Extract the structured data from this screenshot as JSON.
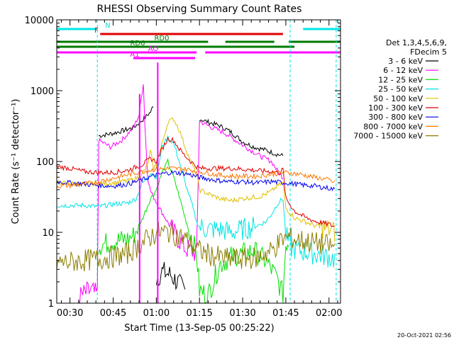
{
  "chart_data": {
    "type": "line",
    "title": "RHESSI Observing Summary Count Rates",
    "xlabel": "Start Time (13-Sep-05 00:25:22)",
    "ylabel": "Count Rate (s⁻¹ detector⁻¹)",
    "yscale": "log",
    "ylim": [
      1,
      10000
    ],
    "xlim_minutes": [
      25.4,
      124
    ],
    "x_ticks": [
      {
        "label": "00:30",
        "minute": 30
      },
      {
        "label": "00:45",
        "minute": 45
      },
      {
        "label": "01:00",
        "minute": 60
      },
      {
        "label": "01:15",
        "minute": 75
      },
      {
        "label": "01:30",
        "minute": 90
      },
      {
        "label": "01:45",
        "minute": 105
      },
      {
        "label": "02:00",
        "minute": 120
      }
    ],
    "y_ticks": [
      {
        "label": "1",
        "value": 1
      },
      {
        "label": "10",
        "value": 10
      },
      {
        "label": "100",
        "value": 100
      },
      {
        "label": "1000",
        "value": 1000
      },
      {
        "label": "10000",
        "value": 10000
      }
    ],
    "legend_title_1": "Det 1,3,4,5,6,9,",
    "legend_title_2": "FDecim 5",
    "legend_position": "right",
    "footer_date": "20-Oct-2021 02:56",
    "flag_bars": [
      {
        "label": "N",
        "color": "#00e5e5",
        "segments": [
          [
            25.4,
            39.5
          ],
          [
            111,
            124
          ]
        ]
      },
      {
        "label": "F",
        "color": "#e00000",
        "segments": [
          [
            40.5,
            104
          ]
        ]
      },
      {
        "label": "RD0",
        "color": "#007a00",
        "segments": [
          [
            25.4,
            78
          ],
          [
            84,
            101
          ],
          [
            106,
            124
          ]
        ]
      },
      {
        "label": "RD6",
        "color": "#007a00",
        "segments": [
          [
            25.4,
            108
          ]
        ]
      },
      {
        "label": "AO",
        "color": "#ff00ff",
        "segments": [
          [
            25.4,
            74
          ],
          [
            77,
            124
          ]
        ]
      },
      {
        "label": "A1",
        "color": "#ff00ff",
        "segments": [
          [
            52,
            73.5
          ]
        ]
      }
    ],
    "series": [
      {
        "name": "3 - 6 keV",
        "color": "#000000",
        "x": [
          25.4,
          39.5,
          40,
          45,
          52,
          55,
          58,
          59,
          59.5,
          60,
          62,
          65,
          70,
          74,
          75,
          78,
          82,
          86,
          90,
          94,
          98,
          101,
          104,
          104.5
        ],
        "y": [
          null,
          null,
          230,
          250,
          300,
          380,
          500,
          620,
          null,
          2.2,
          2.8,
          2.5,
          1.5,
          null,
          400,
          360,
          320,
          260,
          190,
          160,
          145,
          130,
          120,
          null
        ]
      },
      {
        "name": "6 - 12 keV",
        "color": "#ff00ff",
        "x": [
          25.4,
          31,
          33,
          37,
          39.5,
          40,
          44,
          48,
          52,
          54,
          55.5,
          56,
          56.5,
          57,
          58,
          62,
          66,
          70,
          74,
          75,
          78,
          84,
          90,
          96,
          100,
          102,
          103,
          104,
          104.5
        ],
        "y": [
          null,
          null,
          1.2,
          1.5,
          1.3,
          200,
          160,
          200,
          300,
          450,
          1300,
          350,
          140,
          60,
          38,
          19,
          10,
          6,
          5,
          370,
          320,
          250,
          170,
          120,
          100,
          75,
          65,
          60,
          null
        ]
      },
      {
        "name": "12 - 25 keV",
        "color": "#00e000",
        "x": [
          25.4,
          39.5,
          40,
          45,
          50,
          52,
          55,
          58,
          60,
          62,
          64,
          66,
          68,
          70,
          72,
          74,
          75,
          78,
          82,
          86,
          90,
          94,
          96,
          98,
          100,
          102,
          104,
          105,
          106,
          108
        ],
        "y": [
          null,
          null,
          6.5,
          7.5,
          8,
          9,
          15,
          30,
          40,
          70,
          100,
          60,
          32,
          16,
          9,
          5,
          1.5,
          1.3,
          3.5,
          4.5,
          5,
          5.5,
          4.5,
          4,
          3,
          2.2,
          1.3,
          7,
          7.5,
          null
        ]
      },
      {
        "name": "25 - 50 keV",
        "color": "#00e5e5",
        "x": [
          25.4,
          35,
          40,
          45,
          50,
          53,
          55,
          58,
          60,
          62,
          64,
          66,
          68,
          70,
          72,
          74,
          75,
          78,
          82,
          86,
          88,
          90,
          94,
          98,
          100,
          102,
          104,
          105,
          107,
          110,
          115,
          120,
          122
        ],
        "y": [
          24,
          24,
          23,
          25,
          26,
          30,
          48,
          70,
          60,
          160,
          220,
          180,
          100,
          50,
          28,
          14,
          12,
          11,
          11,
          10,
          10.5,
          11,
          12,
          14,
          18,
          25,
          30,
          9,
          6,
          5.5,
          5,
          4.5,
          4.2
        ]
      },
      {
        "name": "50 - 100 keV",
        "color": "#e0c000",
        "x": [
          25.4,
          35,
          45,
          52,
          55,
          57,
          58,
          59,
          60,
          62,
          64,
          66,
          68,
          70,
          72,
          74,
          75,
          78,
          82,
          86,
          90,
          96,
          100,
          102,
          104,
          105,
          108,
          112,
          116,
          120,
          122
        ],
        "y": [
          50,
          48,
          50,
          55,
          65,
          90,
          140,
          80,
          90,
          180,
          360,
          400,
          280,
          160,
          100,
          65,
          40,
          35,
          30,
          28,
          30,
          32,
          38,
          45,
          50,
          22,
          16,
          14,
          12,
          11,
          10
        ]
      },
      {
        "name": "100 - 300 keV",
        "color": "#e00000",
        "x": [
          25.4,
          30,
          35,
          40,
          45,
          50,
          55,
          58,
          60,
          62,
          64,
          66,
          68,
          70,
          72,
          74,
          75,
          78,
          82,
          86,
          90,
          96,
          100,
          103,
          104,
          105,
          108,
          112,
          116,
          120,
          122
        ],
        "y": [
          85,
          80,
          72,
          70,
          70,
          75,
          90,
          110,
          100,
          150,
          210,
          200,
          150,
          120,
          100,
          85,
          80,
          80,
          80,
          80,
          78,
          74,
          72,
          70,
          78,
          30,
          20,
          16,
          14,
          13,
          12
        ]
      },
      {
        "name": "300 - 800 keV",
        "color": "#0000ee",
        "x": [
          25.4,
          30,
          35,
          40,
          45,
          50,
          55,
          60,
          65,
          70,
          75,
          80,
          85,
          90,
          95,
          100,
          105,
          110,
          115,
          120,
          122
        ],
        "y": [
          52,
          50,
          48,
          46,
          45,
          48,
          55,
          65,
          70,
          68,
          60,
          55,
          52,
          52,
          50,
          52,
          50,
          47,
          45,
          42,
          40
        ]
      },
      {
        "name": "800 - 7000 keV",
        "color": "#ff7700",
        "x": [
          25.4,
          30,
          35,
          40,
          45,
          50,
          55,
          60,
          65,
          70,
          75,
          80,
          85,
          90,
          95,
          100,
          105,
          110,
          115,
          120,
          122
        ],
        "y": [
          45,
          46,
          48,
          52,
          58,
          65,
          72,
          78,
          80,
          78,
          72,
          66,
          62,
          62,
          62,
          66,
          70,
          66,
          60,
          55,
          50
        ]
      },
      {
        "name": "7000 - 15000 keV",
        "color": "#8b7d00",
        "x": [
          25.4,
          30,
          35,
          40,
          45,
          50,
          55,
          60,
          65,
          70,
          75,
          80,
          85,
          90,
          95,
          100,
          104,
          106,
          108,
          112,
          116,
          120,
          122
        ],
        "y": [
          3.7,
          3.8,
          4,
          4.2,
          4.5,
          5,
          7,
          10,
          10,
          8,
          5.5,
          4.6,
          4.2,
          4.2,
          4.4,
          5.5,
          8,
          8.5,
          8,
          7.5,
          7,
          6.5,
          6
        ]
      }
    ],
    "marker_lines": [
      {
        "minute": 60.5,
        "color": "#ff00ff",
        "y_from": 1,
        "y_to": 2500
      },
      {
        "minute": 54.2,
        "color": "#ff00ff",
        "y_from": 1,
        "y_to": 900
      }
    ],
    "attenuator_lines": [
      {
        "minute": 39.5,
        "color": "#00e5e5"
      },
      {
        "minute": 106.5,
        "color": "#00e5e5"
      },
      {
        "minute": 122.5,
        "color": "#00e5e5"
      }
    ]
  }
}
